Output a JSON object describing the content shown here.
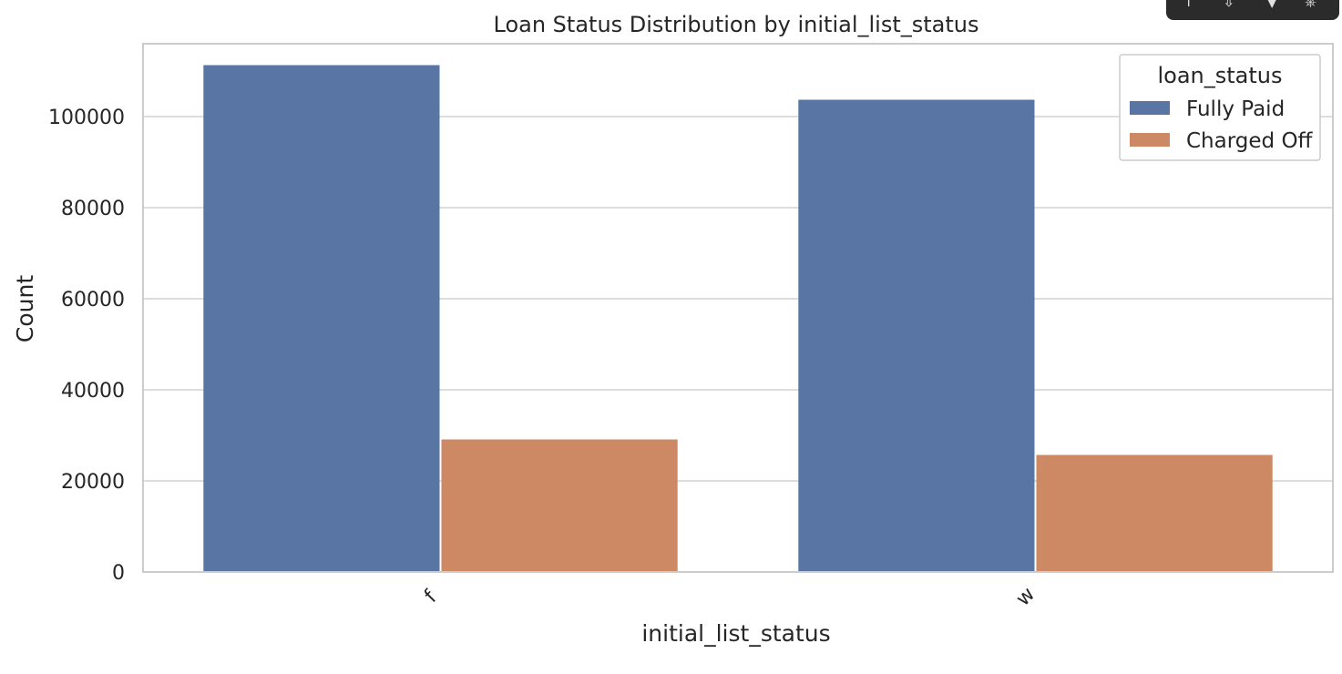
{
  "chart_data": {
    "type": "bar",
    "title": "Loan Status Distribution by initial_list_status",
    "xlabel": "initial_list_status",
    "ylabel": "Count",
    "categories": [
      "f",
      "w"
    ],
    "series": [
      {
        "name": "Fully Paid",
        "values": [
          111300,
          103700
        ],
        "color": "#5875a4"
      },
      {
        "name": "Charged Off",
        "values": [
          29100,
          25700
        ],
        "color": "#cc8963"
      }
    ],
    "ylim": [
      0,
      116000
    ],
    "yticks": [
      "0",
      "20000",
      "40000",
      "60000",
      "80000",
      "100000"
    ],
    "legend": {
      "title": "loan_status",
      "placement": "top-right"
    },
    "grid": true,
    "background": "#ffffff",
    "grid_color": "#dddddd"
  },
  "toolbar": {
    "icons": [
      "pin-icon",
      "arrow-icon",
      "pointer-icon",
      "copy-icon"
    ]
  }
}
